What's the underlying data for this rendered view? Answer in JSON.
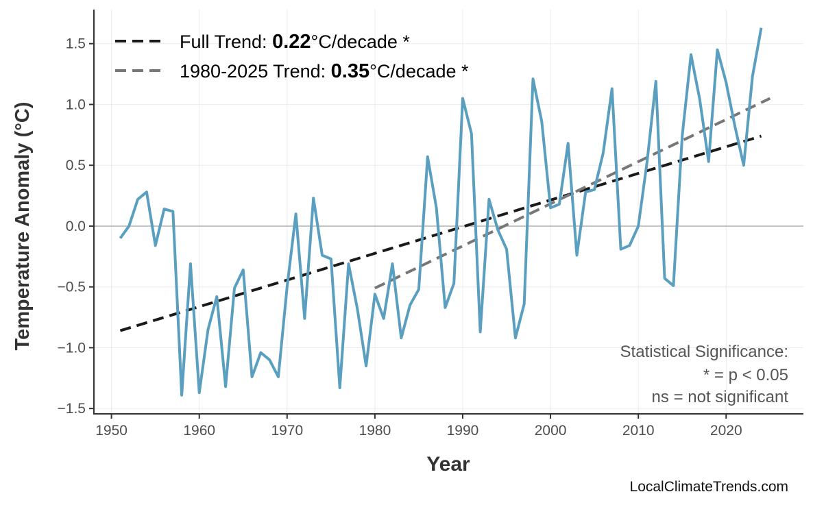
{
  "chart_data": {
    "type": "line",
    "xlabel": "Year",
    "ylabel": "Temperature Anomaly (°C)",
    "xlim": [
      1948,
      2028.8
    ],
    "ylim": [
      -1.544,
      1.78
    ],
    "xticks": [
      1950,
      1960,
      1970,
      1980,
      1990,
      2000,
      2010,
      2020
    ],
    "yticks": [
      -1.5,
      -1.0,
      -0.5,
      0.0,
      0.5,
      1.0,
      1.5
    ],
    "ytick_labels": [
      "−1.5",
      "−1.0",
      "−0.5",
      "0.0",
      "0.5",
      "1.0",
      "1.5"
    ],
    "grid": true,
    "zero_line": true,
    "legend_position": "top-left",
    "colors": {
      "series": "#5a9fc0",
      "full_trend": "#1a1a1a",
      "recent_trend": "#777777",
      "zero_line": "#b0b0b0",
      "grid": "#ececec"
    },
    "series": [
      {
        "x": [
          1951,
          1952,
          1953,
          1954,
          1955,
          1956,
          1957,
          1958,
          1959,
          1960,
          1961,
          1962,
          1963,
          1964,
          1965,
          1966,
          1967,
          1968,
          1969,
          1970,
          1971,
          1972,
          1973,
          1974,
          1975,
          1976,
          1977,
          1978,
          1979,
          1980,
          1981,
          1982,
          1983,
          1984,
          1985,
          1986,
          1987,
          1988,
          1989,
          1990,
          1991,
          1992,
          1993,
          1994,
          1995,
          1996,
          1997,
          1998,
          1999,
          2000,
          2001,
          2002,
          2003,
          2004,
          2005,
          2006,
          2007,
          2008,
          2009,
          2010,
          2011,
          2012,
          2013,
          2014,
          2015,
          2016,
          2017,
          2018,
          2019,
          2020,
          2021,
          2022,
          2023,
          2024
        ],
        "values": [
          -0.1,
          0.0,
          0.22,
          0.28,
          -0.16,
          0.14,
          0.12,
          -1.39,
          -0.31,
          -1.37,
          -0.85,
          -0.58,
          -1.32,
          -0.51,
          -0.36,
          -1.24,
          -1.04,
          -1.1,
          -1.24,
          -0.5,
          0.1,
          -0.76,
          0.23,
          -0.24,
          -0.27,
          -1.33,
          -0.31,
          -0.68,
          -1.15,
          -0.56,
          -0.76,
          -0.31,
          -0.92,
          -0.65,
          -0.52,
          0.57,
          0.15,
          -0.67,
          -0.47,
          1.05,
          0.76,
          -0.87,
          0.22,
          -0.03,
          -0.19,
          -0.92,
          -0.64,
          1.21,
          0.86,
          0.15,
          0.18,
          0.68,
          -0.24,
          0.28,
          0.3,
          0.6,
          1.13,
          -0.19,
          -0.16,
          0.0,
          0.53,
          1.19,
          -0.43,
          -0.49,
          0.74,
          1.41,
          1.04,
          0.53,
          1.45,
          1.18,
          0.82,
          0.5,
          1.23,
          1.63
        ]
      }
    ],
    "trends": [
      {
        "key": "full",
        "prefix": "Full Trend: ",
        "rate": "0.22",
        "suffix": "°C/decade *",
        "x": [
          1951,
          2024
        ],
        "y": [
          -0.86,
          0.74
        ]
      },
      {
        "key": "recent",
        "prefix": "1980-2025 Trend: ",
        "rate": "0.35",
        "suffix": "°C/decade *",
        "x": [
          1980,
          2025
        ],
        "y": [
          -0.51,
          1.05
        ]
      }
    ],
    "annotation": [
      "Statistical Significance:",
      "* = p < 0.05",
      "ns = not significant"
    ]
  },
  "watermark": "LocalClimateTrends.com"
}
